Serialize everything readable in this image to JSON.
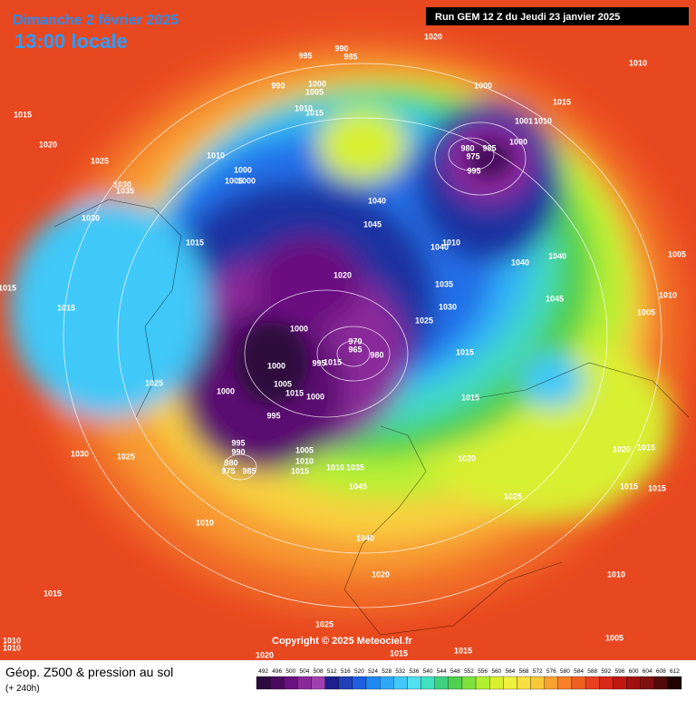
{
  "header": {
    "date": "Dimanche 2 février 2025",
    "time": "13:00 locale",
    "run": "Run GEM 12 Z du Jeudi 23 janvier 2025"
  },
  "copyright": "Copyright © 2025 Meteociel.fr",
  "footer": {
    "title": "Géop. Z500 & pression au sol",
    "subtitle": "(+ 240h)"
  },
  "legend": {
    "ticks": [
      492,
      496,
      500,
      504,
      508,
      512,
      516,
      520,
      524,
      528,
      532,
      536,
      540,
      544,
      548,
      552,
      556,
      560,
      564,
      568,
      572,
      576,
      580,
      584,
      588,
      592,
      596,
      600,
      604,
      608,
      612
    ],
    "colors": [
      "#2d0a3e",
      "#4a0a5e",
      "#6a1080",
      "#8a2a9a",
      "#a040b0",
      "#1e1e8c",
      "#2040b8",
      "#2060e0",
      "#2088f0",
      "#30a8f8",
      "#40c8f8",
      "#50e0f0",
      "#40e0c0",
      "#40d080",
      "#50d050",
      "#80e040",
      "#b0f030",
      "#d8f030",
      "#f0f040",
      "#f8e040",
      "#f8c838",
      "#f8a030",
      "#f88028",
      "#f06020",
      "#e84020",
      "#d82818",
      "#c01810",
      "#a01010",
      "#801010",
      "#500808",
      "#200000"
    ]
  },
  "isobars": {
    "labels": [
      995,
      990,
      985,
      1020,
      1010,
      990,
      1000,
      1005,
      1000,
      1015,
      1010,
      1015,
      1001,
      1010,
      980,
      985,
      975,
      1000,
      995,
      1015,
      1020,
      1025,
      1030,
      1035,
      1010,
      1000,
      1005,
      1000,
      1040,
      1045,
      1040,
      1010,
      1040,
      1040,
      1005,
      1030,
      1015,
      1020,
      1035,
      1015,
      1010,
      1045,
      1030,
      1025,
      1015,
      1005,
      1000,
      970,
      965,
      980,
      1015,
      995,
      1015,
      1000,
      1025,
      1015,
      1000,
      1005,
      1015,
      1000,
      995,
      995,
      990,
      980,
      975,
      985,
      1005,
      1010,
      1015,
      1035,
      1010,
      1030,
      1025,
      1020,
      1020,
      1015,
      1045,
      1025,
      1015,
      1015,
      1010,
      1040,
      1020,
      1015,
      1010,
      1025,
      1005,
      1010,
      1010,
      1020,
      1015,
      1015
    ]
  }
}
